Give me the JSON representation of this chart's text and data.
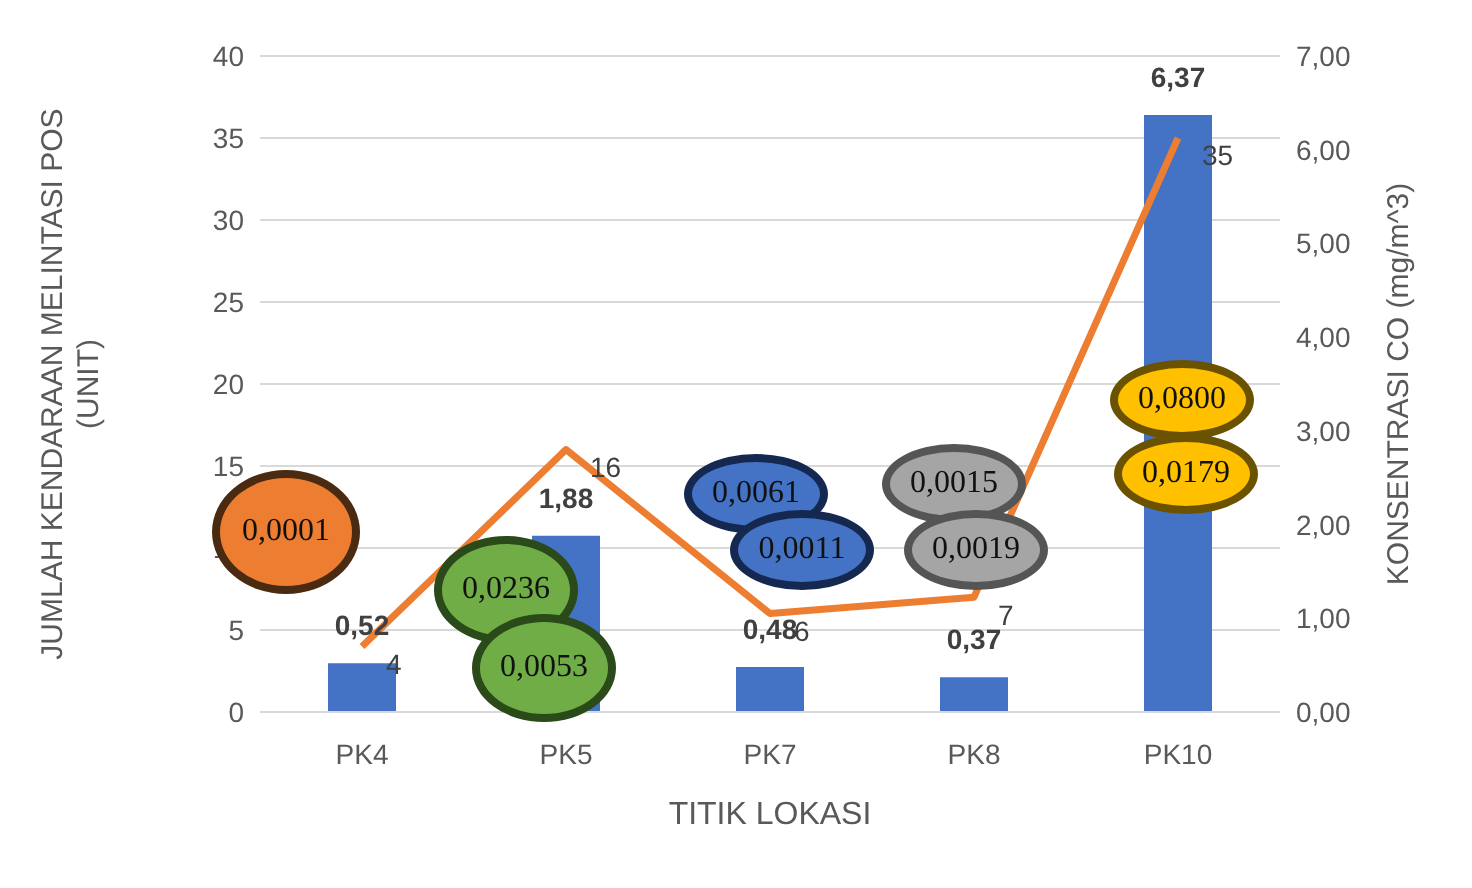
{
  "chart_data": {
    "type": "bar",
    "xlabel": "TITIK LOKASI",
    "ylabel": "JUMLAH KENDARAAN MELINTASI POS (UNIT)",
    "y2label": "KONSENTRASI CO (mg/m^3)",
    "categories": [
      "PK4",
      "PK5",
      "PK7",
      "PK8",
      "PK10"
    ],
    "series": [
      {
        "axis": "y2",
        "color": "#4472c4",
        "values": [
          0.52,
          1.88,
          0.48,
          0.37,
          6.37
        ],
        "value_labels": [
          "0,52",
          "1,88",
          "0,48",
          "0,37",
          "6,37"
        ]
      },
      {
        "type": "line",
        "axis": "y",
        "color": "#ed7d31",
        "values": [
          4,
          16,
          6,
          7,
          35
        ],
        "value_labels": [
          "4",
          "16",
          "6",
          "7",
          "35"
        ],
        "marker": "none"
      }
    ],
    "ylim": [
      0,
      40
    ],
    "yticks": [
      0,
      5,
      10,
      15,
      20,
      25,
      30,
      35,
      40
    ],
    "y2lim": [
      0,
      7
    ],
    "y2ticks": [
      {
        "value": 0,
        "label": "0,00"
      },
      {
        "value": 1,
        "label": "1,00"
      },
      {
        "value": 2,
        "label": "2,00"
      },
      {
        "value": 3,
        "label": "3,00"
      },
      {
        "value": 4,
        "label": "4,00"
      },
      {
        "value": 5,
        "label": "5,00"
      },
      {
        "value": 6,
        "label": "6,00"
      },
      {
        "value": 7,
        "label": "7,00"
      }
    ],
    "grid": "y",
    "legend": false,
    "annotations": [
      "0,0001",
      "0,0236",
      "0,0053",
      "0,0061",
      "0,0011",
      "0,0015",
      "0,0019",
      "0,0800",
      "0,0179"
    ]
  }
}
